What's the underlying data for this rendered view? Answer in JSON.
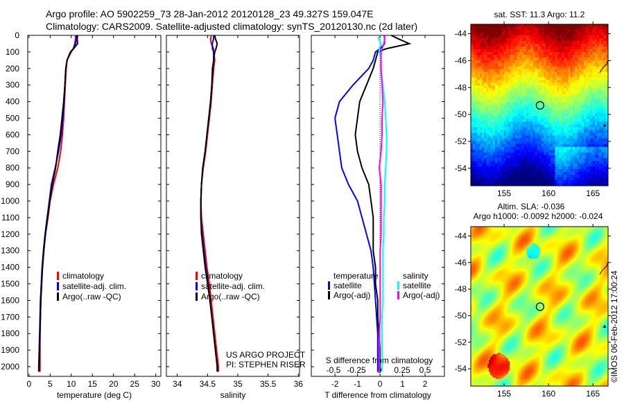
{
  "title": {
    "line1": "Argo profile: AO 5902259_73 28-Jan-2012 20120128_23 49.327S 159.047E",
    "line2": "Climatology: CARS2009. Satellite-adjusted climatology: synTS_20120130.nc (2d later)"
  },
  "credit": "©IMOS 06-Feb-2012 17:00:24",
  "project": {
    "line1": "US ARGO PROJECT",
    "line2": "PI: STEPHEN RISER"
  },
  "colors": {
    "climatology": "#ff0000",
    "satellite": "#0000ff",
    "argo": "#000000",
    "s_satellite": "#00ffff",
    "s_argo": "#ff00ff"
  },
  "chart_data": [
    {
      "type": "line",
      "id": "temperature",
      "xlabel": "temperature (deg C)",
      "ylabel": "",
      "xlim": [
        -0.3,
        31.2
      ],
      "ylim": [
        2050,
        0
      ],
      "xticks": [
        0,
        5,
        10,
        15,
        20,
        25,
        30
      ],
      "yticks": [
        0,
        100,
        200,
        300,
        400,
        500,
        600,
        700,
        800,
        900,
        1000,
        1100,
        1200,
        1300,
        1400,
        1500,
        1600,
        1700,
        1800,
        1900,
        2000
      ],
      "depth": [
        0,
        20,
        50,
        80,
        100,
        150,
        200,
        300,
        400,
        500,
        600,
        700,
        800,
        900,
        1000,
        1100,
        1200,
        1300,
        1400,
        1500,
        1600,
        1700,
        1800,
        1900,
        2000,
        2030
      ],
      "legend": [
        "climatology",
        "satellite-adj. clim.",
        "Argo(..raw -QC)"
      ],
      "series": [
        {
          "name": "climatology",
          "color": "#ff0000",
          "values": [
            11,
            11,
            10.8,
            10.5,
            10,
            9,
            8.8,
            8.6,
            8.4,
            8.2,
            7.9,
            7.5,
            6.8,
            5.8,
            5,
            4.5,
            3.9,
            3.5,
            3.2,
            3.0,
            2.8,
            2.7,
            2.6,
            2.6,
            2.6,
            2.6
          ]
        },
        {
          "name": "satellite-adj. clim.",
          "color": "#0000ff",
          "values": [
            11.2,
            11.2,
            11,
            10.5,
            9.8,
            9,
            8.7,
            8.5,
            8.3,
            8.0,
            7.6,
            7.0,
            6.2,
            5.3,
            4.8,
            4.3,
            3.8,
            3.4,
            3.1,
            2.9,
            2.7,
            2.6,
            2.5,
            2.4,
            2.3,
            2.3
          ]
        },
        {
          "name": "Argo(..raw -QC)",
          "color": "#000000",
          "values": [
            11.5,
            11.4,
            11.5,
            10.6,
            9.8,
            9,
            8.7,
            8.5,
            8.2,
            7.8,
            7.4,
            6.8,
            6.3,
            5.5,
            4.9,
            4.4,
            3.9,
            3.5,
            3.2,
            3.0,
            2.8,
            2.7,
            2.6,
            2.5,
            2.4,
            2.4
          ]
        }
      ]
    },
    {
      "type": "line",
      "id": "salinity",
      "xlabel": "salinity",
      "xlim": [
        33.82,
        36.02
      ],
      "ylim": [
        2050,
        0
      ],
      "xticks": [
        34,
        34.5,
        35,
        35.5,
        36
      ],
      "depth": [
        0,
        20,
        50,
        80,
        100,
        150,
        200,
        300,
        400,
        500,
        600,
        700,
        800,
        900,
        1000,
        1100,
        1200,
        1300,
        1400,
        1500,
        1600,
        1700,
        1800,
        1900,
        2000,
        2030
      ],
      "legend": [
        "climatology",
        "satellite-adj. clim.",
        "Argo(..raw -QC)"
      ],
      "series": [
        {
          "name": "climatology",
          "color": "#ff0000",
          "values": [
            34.56,
            34.55,
            34.56,
            34.6,
            34.6,
            34.62,
            34.6,
            34.58,
            34.56,
            34.53,
            34.5,
            34.47,
            34.43,
            34.4,
            34.39,
            34.4,
            34.43,
            34.46,
            34.49,
            34.53,
            34.56,
            34.59,
            34.62,
            34.65,
            34.68,
            34.68
          ]
        },
        {
          "name": "satellite-adj. clim.",
          "color": "#0000ff",
          "values": [
            34.6,
            34.6,
            34.58,
            34.58,
            34.6,
            34.6,
            34.58,
            34.57,
            34.55,
            34.52,
            34.49,
            34.46,
            34.42,
            34.4,
            34.39,
            34.39,
            34.41,
            34.44,
            34.47,
            34.51,
            34.54,
            34.57,
            34.6,
            34.63,
            34.66,
            34.66
          ]
        },
        {
          "name": "Argo(..raw -QC)",
          "color": "#000000",
          "values": [
            34.62,
            34.63,
            34.66,
            34.64,
            34.62,
            34.6,
            34.59,
            34.57,
            34.55,
            34.52,
            34.49,
            34.46,
            34.42,
            34.4,
            34.39,
            34.39,
            34.4,
            34.43,
            34.46,
            34.5,
            34.54,
            34.57,
            34.6,
            34.63,
            34.66,
            34.66
          ]
        }
      ]
    },
    {
      "type": "line",
      "id": "difference",
      "xlabel": "T difference from climatology",
      "x2label": "S difference from climatology",
      "xlim": [
        -3.05,
        2.86
      ],
      "ylim": [
        2050,
        0
      ],
      "xticks": [
        -2,
        -1,
        0,
        1,
        2
      ],
      "x2ticks": [
        "-0.5",
        "-0.25",
        "0",
        "0.25",
        "0.5"
      ],
      "x2tick_values": [
        -0.5,
        -0.25,
        0,
        0.25,
        0.5
      ],
      "depth": [
        0,
        20,
        50,
        80,
        100,
        150,
        200,
        300,
        400,
        500,
        600,
        700,
        800,
        900,
        1000,
        1100,
        1200,
        1300,
        1400,
        1500,
        1600,
        1700,
        1800,
        1900,
        2000,
        2030
      ],
      "legend_titles": [
        "temperature",
        "salinity"
      ],
      "legend": [
        "satellite",
        "Argo(-adj)",
        "satellite",
        "Argo(-adj)"
      ],
      "series": [
        {
          "name": "T satellite",
          "axis": "T",
          "color": "#0000ff",
          "values": [
            0.2,
            0.2,
            0.2,
            0.0,
            -0.2,
            -0.3,
            -0.5,
            -1.2,
            -1.8,
            -2.0,
            -1.9,
            -1.8,
            -1.7,
            -1.4,
            -1.0,
            -0.8,
            -0.6,
            -0.4,
            -0.3,
            -0.25,
            -0.2,
            -0.15,
            -0.1,
            -0.1,
            -0.1,
            -0.1
          ]
        },
        {
          "name": "T Argo(-adj)",
          "axis": "T",
          "color": "#000000",
          "values": [
            0.5,
            0.8,
            1.3,
            0.3,
            -0.1,
            -0.2,
            -0.3,
            -0.6,
            -0.9,
            -1.0,
            -1.1,
            -1.0,
            -0.8,
            -0.5,
            -0.4,
            -0.3,
            -0.3,
            -0.3,
            -0.2,
            -0.2,
            -0.1,
            -0.1,
            -0.05,
            0,
            0,
            0
          ]
        },
        {
          "name": "S satellite",
          "axis": "S",
          "color": "#00ffff",
          "values": [
            0.0,
            -0.01,
            0.02,
            0.0,
            0.0,
            0.02,
            0.02,
            0.04,
            0.06,
            0.07,
            0.08,
            0.08,
            0.07,
            0.06,
            0.06,
            0.05,
            0.05,
            0.04,
            0.04,
            0.04,
            0.04,
            0.03,
            0.03,
            0.03,
            0.03,
            0.03
          ]
        },
        {
          "name": "S Argo(-adj)",
          "axis": "S",
          "color": "#ff00ff",
          "values": [
            0.05,
            0.06,
            0.05,
            0.03,
            0.02,
            0.02,
            0.02,
            0.03,
            0.04,
            0.03,
            0.03,
            0.02,
            0.0,
            0.02,
            0.02,
            0.02,
            0.02,
            0.01,
            0.01,
            0.01,
            0.01,
            0.01,
            0.0,
            0.0,
            0.0,
            0.0
          ]
        }
      ]
    },
    {
      "type": "heatmap",
      "id": "sst_map",
      "title": "sat. SST: 11.3 Argo: 11.2",
      "xlim": [
        151.25,
        166.7
      ],
      "ylim": [
        -55.3,
        -43.3
      ],
      "xticks": [
        155,
        160,
        165
      ],
      "yticks": [
        -44,
        -46,
        -48,
        -50,
        -52,
        -54
      ],
      "marker": {
        "lon": 159.047,
        "lat": -49.327
      }
    },
    {
      "type": "heatmap",
      "id": "sla_map",
      "title": "Altim. SLA: -0.036",
      "subtitle": "Argo h1000: -0.0092 h2000: -0.024",
      "xlim": [
        151.25,
        166.7
      ],
      "ylim": [
        -55.3,
        -43.3
      ],
      "xticks": [
        155,
        160,
        165
      ],
      "yticks": [
        -44,
        -46,
        -48,
        -50,
        -52,
        -54
      ],
      "marker": {
        "lon": 159.047,
        "lat": -49.327
      }
    }
  ]
}
